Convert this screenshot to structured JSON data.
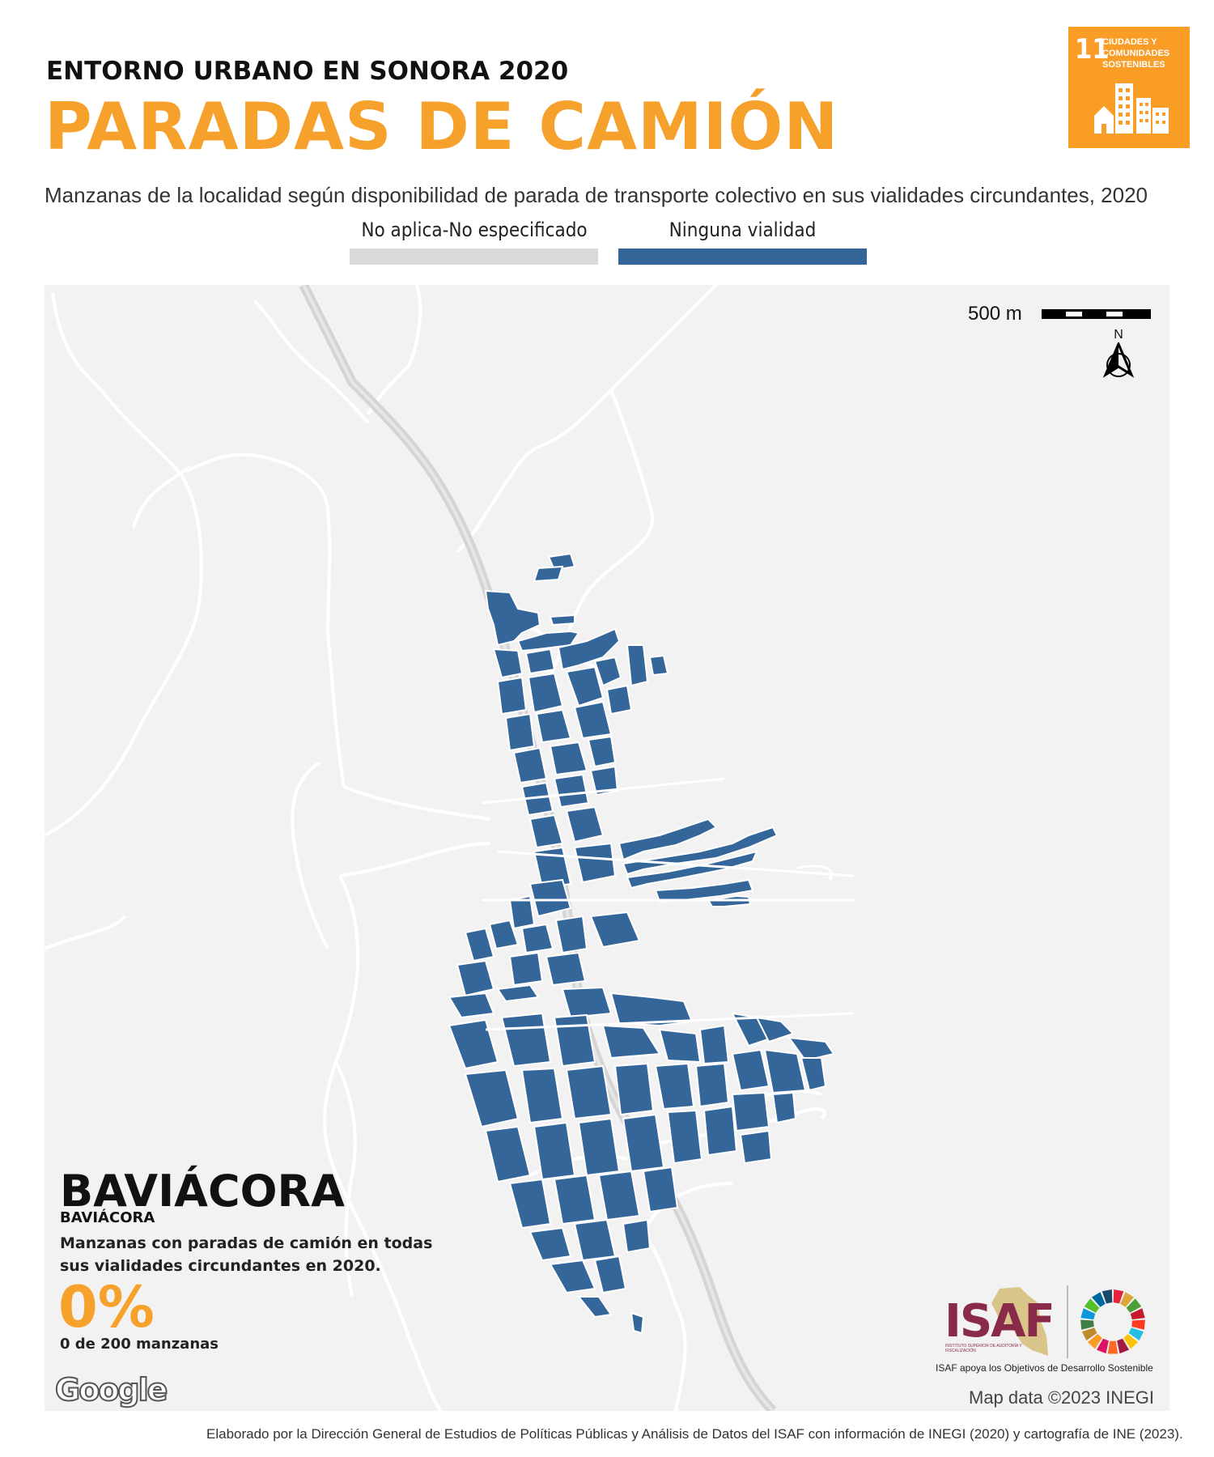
{
  "header": {
    "kicker": "ENTORNO URBANO EN SONORA 2020",
    "title": "PARADAS DE CAMIÓN",
    "subtitle": "Manzanas de la localidad según disponibilidad de parada de transporte colectivo en sus vialidades circundantes, 2020"
  },
  "sdg_badge": {
    "number": "11",
    "text": "CIUDADES Y COMUNIDADES SOSTENIBLES",
    "color": "#f99d26"
  },
  "legend": [
    {
      "label": "No aplica-No especificado",
      "color": "#d9d9d9"
    },
    {
      "label": "Ninguna vialidad",
      "color": "#35669a"
    }
  ],
  "map": {
    "scale_label": "500 m",
    "north_label": "N",
    "background_color": "#f2f2f2",
    "block_color": "#35669a",
    "attribution": "Map data ©2023 INEGI",
    "provider_logo": "Google"
  },
  "locality": {
    "name": "BAVIÁCORA",
    "municipality": "BAVIÁCORA",
    "description": "Manzanas con paradas de camión en todas sus vialidades circundantes en 2020.",
    "percentage": "0%",
    "count_text": "0 de 200 manzanas"
  },
  "branding": {
    "isaf_name": "ISAF",
    "isaf_fullname": "INSTITUTO SUPERIOR DE AUDITORÍA Y FISCALIZACIÓN",
    "caption": "ISAF apoya los Objetivos de Desarrollo Sostenible",
    "isaf_color": "#8a2a4a"
  },
  "footer": "Elaborado por la Dirección General de Estudios de Políticas Públicas y Análisis de Datos del ISAF con información de INEGI (2020) y cartografía de INE (2023)."
}
